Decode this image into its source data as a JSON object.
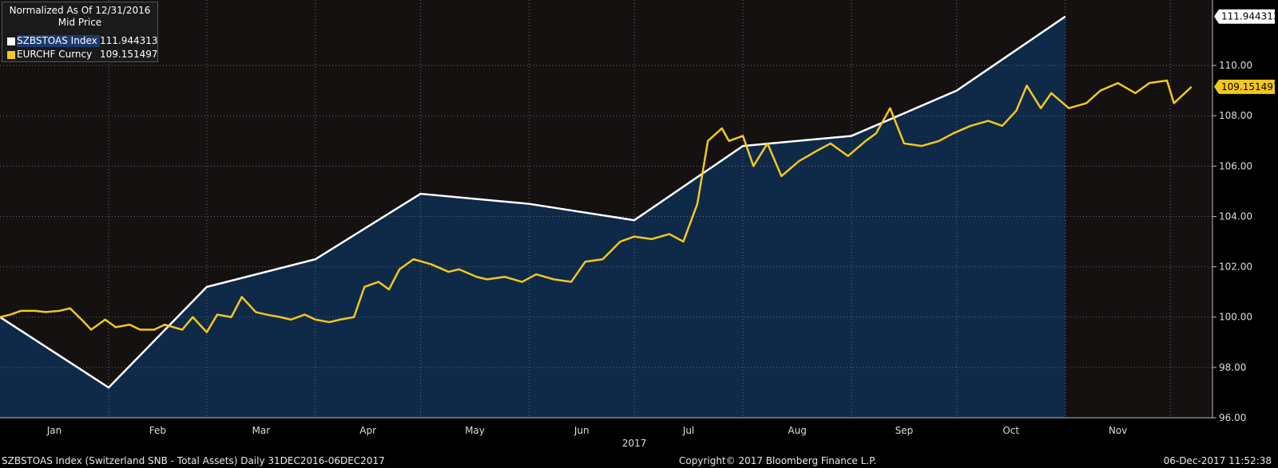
{
  "legend": {
    "title": "Normalized As Of 12/31/2016",
    "subtitle": "Mid Price",
    "items": [
      {
        "name": "SZBSTOAS Index",
        "value": "111.944313",
        "color": "#ffffff"
      },
      {
        "name": "EURCHF Curncy",
        "value": "109.151497",
        "color": "#f2c81e"
      }
    ]
  },
  "footer": {
    "left": "SZBSTOAS Index (Switzerland SNB - Total Assets)  Daily 31DEC2016-06DEC2017",
    "center": "Copyright© 2017 Bloomberg Finance L.P.",
    "right": "06-Dec-2017 11:52:38"
  },
  "colors": {
    "background": "#000000",
    "plot_dark": "#151111",
    "area_fill": "#0f2948",
    "grid": "#6a6a6a"
  },
  "chart_data": {
    "type": "line",
    "ylim": [
      96,
      112.6
    ],
    "yticks": [
      "96.00",
      "98.00",
      "100.00",
      "102.00",
      "104.00",
      "106.00",
      "108.00",
      "110.00"
    ],
    "x_label": "2017",
    "xticks": [
      "Jan",
      "Feb",
      "Mar",
      "Apr",
      "May",
      "Jun",
      "Jul",
      "Aug",
      "Sep",
      "Oct",
      "Nov"
    ],
    "grid": true,
    "legend_position": "top-left",
    "last_value_labels": [
      "111.944313",
      "109.151497"
    ],
    "series": [
      {
        "name": "SZBSTOAS Index",
        "color": "#ffffff",
        "x": [
          "2016-12-31",
          "2017-01-31",
          "2017-02-28",
          "2017-03-31",
          "2017-04-30",
          "2017-05-31",
          "2017-06-30",
          "2017-07-31",
          "2017-08-31",
          "2017-09-30",
          "2017-10-31"
        ],
        "values": [
          100.0,
          97.2,
          101.2,
          102.3,
          104.9,
          104.5,
          103.85,
          106.8,
          107.2,
          109.0,
          111.944313
        ]
      },
      {
        "name": "EURCHF Curncy",
        "color": "#f2c81e",
        "x": [
          "2016-12-31",
          "2017-01-03",
          "2017-01-06",
          "2017-01-10",
          "2017-01-13",
          "2017-01-17",
          "2017-01-20",
          "2017-01-24",
          "2017-01-26",
          "2017-01-30",
          "2017-02-02",
          "2017-02-06",
          "2017-02-09",
          "2017-02-13",
          "2017-02-16",
          "2017-02-21",
          "2017-02-24",
          "2017-02-28",
          "2017-03-03",
          "2017-03-07",
          "2017-03-10",
          "2017-03-14",
          "2017-03-17",
          "2017-03-21",
          "2017-03-24",
          "2017-03-28",
          "2017-03-31",
          "2017-04-04",
          "2017-04-07",
          "2017-04-11",
          "2017-04-14",
          "2017-04-18",
          "2017-04-21",
          "2017-04-24",
          "2017-04-28",
          "2017-05-03",
          "2017-05-08",
          "2017-05-11",
          "2017-05-16",
          "2017-05-19",
          "2017-05-24",
          "2017-05-29",
          "2017-06-02",
          "2017-06-07",
          "2017-06-12",
          "2017-06-16",
          "2017-06-21",
          "2017-06-26",
          "2017-06-30",
          "2017-07-05",
          "2017-07-10",
          "2017-07-14",
          "2017-07-18",
          "2017-07-21",
          "2017-07-25",
          "2017-07-27",
          "2017-07-31",
          "2017-08-03",
          "2017-08-07",
          "2017-08-11",
          "2017-08-16",
          "2017-08-21",
          "2017-08-25",
          "2017-08-30",
          "2017-09-04",
          "2017-09-07",
          "2017-09-11",
          "2017-09-15",
          "2017-09-20",
          "2017-09-25",
          "2017-09-29",
          "2017-10-04",
          "2017-10-09",
          "2017-10-13",
          "2017-10-17",
          "2017-10-20",
          "2017-10-24",
          "2017-10-27",
          "2017-11-01",
          "2017-11-06",
          "2017-11-10",
          "2017-11-15",
          "2017-11-20",
          "2017-11-24",
          "2017-11-29",
          "2017-12-01",
          "2017-12-06"
        ],
        "values": [
          100.0,
          100.1,
          100.25,
          100.25,
          100.2,
          100.25,
          100.35,
          99.8,
          99.5,
          99.9,
          99.6,
          99.7,
          99.5,
          99.5,
          99.7,
          99.5,
          100.0,
          99.4,
          100.1,
          100.0,
          100.8,
          100.2,
          100.1,
          100.0,
          99.9,
          100.1,
          99.9,
          99.8,
          99.9,
          100.0,
          101.2,
          101.4,
          101.1,
          101.9,
          102.3,
          102.1,
          101.8,
          101.9,
          101.6,
          101.5,
          101.6,
          101.4,
          101.7,
          101.5,
          101.4,
          102.2,
          102.3,
          103.0,
          103.2,
          103.1,
          103.3,
          103.0,
          104.5,
          107.0,
          107.5,
          107.0,
          107.2,
          106.0,
          106.9,
          105.6,
          106.2,
          106.6,
          106.9,
          106.4,
          107.0,
          107.3,
          108.3,
          106.9,
          106.8,
          107.0,
          107.3,
          107.6,
          107.8,
          107.6,
          108.2,
          109.2,
          108.3,
          108.9,
          108.3,
          108.5,
          109.0,
          109.3,
          108.9,
          109.3,
          109.4,
          108.5,
          109.151497
        ]
      }
    ]
  }
}
